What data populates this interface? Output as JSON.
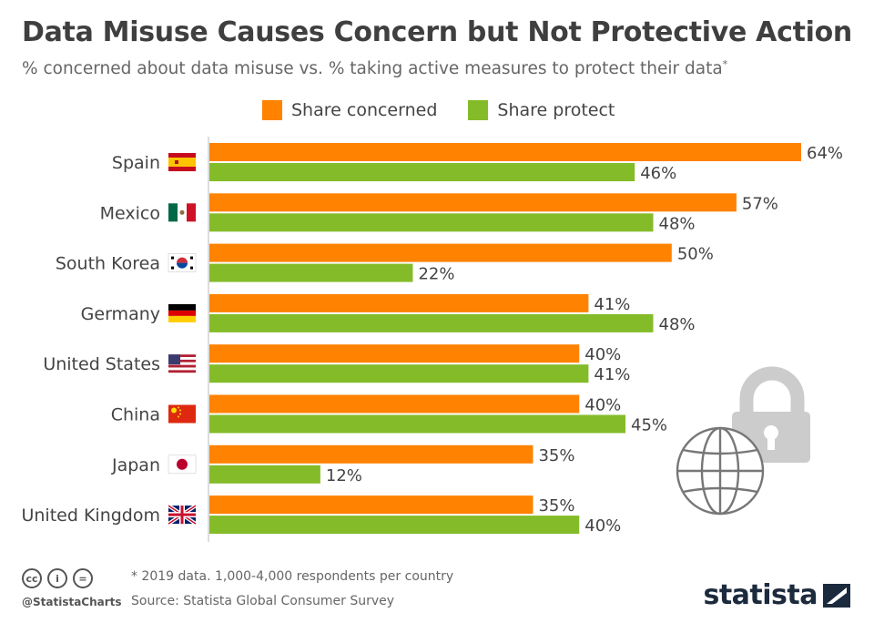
{
  "header": {
    "title": "Data Misuse Causes Concern but Not Protective Action",
    "subtitle": "% concerned about data misuse vs. % taking active measures to protect their data",
    "subtitle_mark": "*"
  },
  "legend": [
    {
      "label": "Share concerned",
      "color": "#ff8200"
    },
    {
      "label": "Share protect",
      "color": "#84bc29"
    }
  ],
  "chart_data": {
    "type": "bar",
    "orientation": "horizontal",
    "categories": [
      "Spain",
      "Mexico",
      "South Korea",
      "Germany",
      "United States",
      "China",
      "Japan",
      "United Kingdom"
    ],
    "series": [
      {
        "name": "Share concerned",
        "color": "#ff8200",
        "values": [
          64,
          57,
          50,
          41,
          40,
          40,
          35,
          35
        ]
      },
      {
        "name": "Share protect",
        "color": "#84bc29",
        "values": [
          46,
          48,
          22,
          48,
          41,
          45,
          12,
          40
        ]
      }
    ],
    "value_suffix": "%",
    "xlim": [
      0,
      64
    ],
    "grid": false,
    "legend_position": "top"
  },
  "footer": {
    "note": "* 2019 data. 1,000-4,000 respondents per country",
    "source": "Source: Statista Global Consumer Survey",
    "handle": "@StatistaCharts",
    "cc_icons": [
      "cc",
      "i",
      "="
    ],
    "brand": "statista"
  },
  "icons": [
    "padlock-icon",
    "globe-icon"
  ]
}
